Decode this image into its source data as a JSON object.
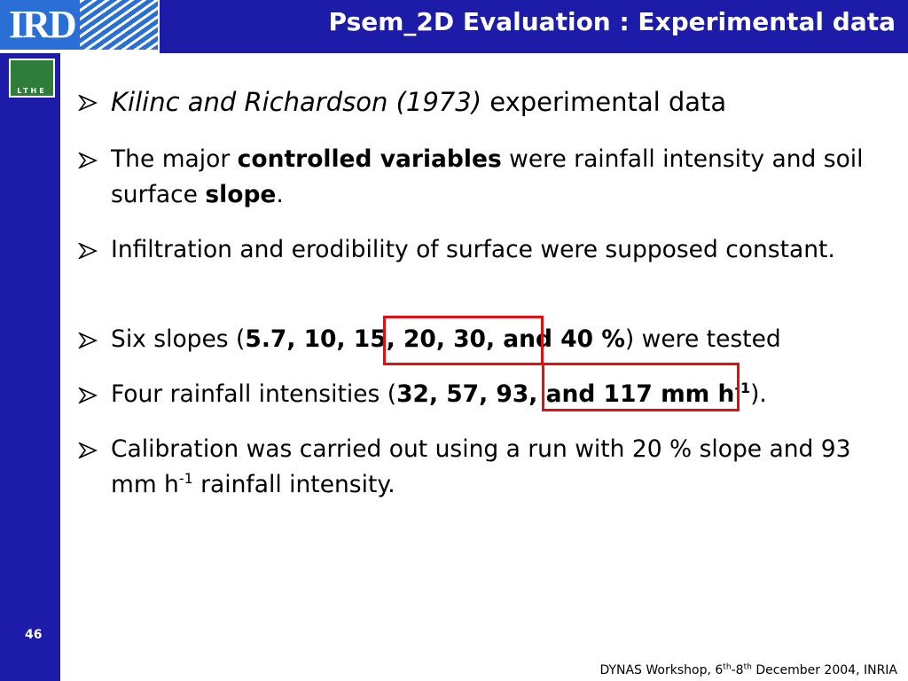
{
  "logos": {
    "ird": "IRD",
    "lthe": "LTHE"
  },
  "title": "Psem_2D Evaluation : Experimental data",
  "bullets": [
    [
      "Kilinc and Richardson (1973)",
      " experimental data"
    ],
    [
      "The major ",
      "controlled variables",
      " were rainfall intensity and soil surface ",
      "slope",
      "."
    ],
    [
      "Infiltration and erodibility of surface were supposed constant."
    ],
    [
      "Six slopes (",
      "5.7, 10, 15, 20, 30, and 40 %",
      ") were tested"
    ],
    [
      "Four rainfall intensities (",
      "32, 57, 93, and 117 mm h",
      "-1",
      ")."
    ],
    [
      "Calibration was carried out using a run with 20 % slope and 93 mm h",
      "-1",
      " rainfall intensity."
    ]
  ],
  "page_number": "46",
  "footer": [
    "DYNAS Workshop, 6",
    "th",
    "-8",
    "th",
    " December 2004, INRIA"
  ]
}
